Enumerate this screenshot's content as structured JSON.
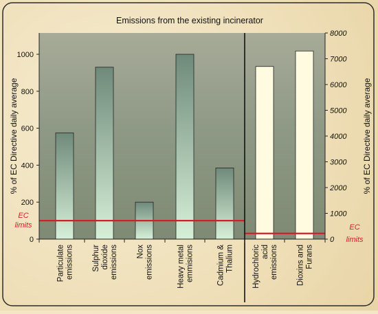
{
  "chart_data": {
    "type": "bar",
    "title": "Emissions from the existing incinerator",
    "ylabel_left": "% of EC Directive daily average",
    "ylabel_right": "% of EC Directive daily average",
    "left_axis": {
      "ylim": [
        0,
        1100
      ],
      "ticks": [
        0,
        200,
        400,
        600,
        800,
        1000
      ]
    },
    "right_axis": {
      "ylim": [
        0,
        8000
      ],
      "ticks": [
        0,
        1000,
        2000,
        3000,
        4000,
        5000,
        6000,
        7000,
        8000
      ]
    },
    "left_panel": {
      "categories": [
        [
          "Particulate",
          "emissions"
        ],
        [
          "Sulphur",
          "dioxide",
          "emissions"
        ],
        [
          "Nox",
          "emissions"
        ],
        [
          "Heavy metal",
          "emmisions"
        ],
        [
          "Cadmium &",
          "Thalium"
        ]
      ],
      "values": [
        575,
        930,
        200,
        1000,
        385
      ],
      "ec_limit": 100,
      "ec_label": [
        "EC",
        "limits"
      ]
    },
    "right_panel": {
      "categories": [
        [
          "Hydrochloric",
          "acid",
          "emissions"
        ],
        [
          "Dioxins and",
          "Furans"
        ]
      ],
      "values": [
        6700,
        7300
      ],
      "ec_limit": 220,
      "ec_label": [
        "EC",
        "limits"
      ]
    },
    "colors": {
      "ec_line": "#d21e2a",
      "left_bar_top": "#6f8a7a",
      "left_bar_bottom": "#d6f0d8",
      "right_bar": "#fffbe0",
      "plot_bg": "#9aa08e"
    }
  }
}
